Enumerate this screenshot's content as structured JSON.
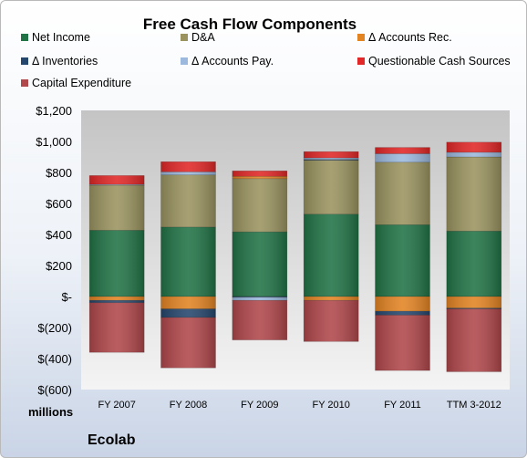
{
  "chart_data": {
    "type": "bar",
    "stacked": true,
    "title": "Free Cash Flow Components",
    "units_label": "millions",
    "company": "Ecolab",
    "ylim": [
      -600,
      1200
    ],
    "y_ticks": [
      1200,
      1000,
      800,
      600,
      400,
      200,
      0,
      -200,
      -400,
      -600
    ],
    "y_tick_labels": [
      "$1,200",
      "$1,000",
      "$800",
      "$600",
      "$400",
      "$200",
      "$-",
      "$(200)",
      "$(400)",
      "$(600)"
    ],
    "categories": [
      "FY 2007",
      "FY 2008",
      "FY 2009",
      "FY 2010",
      "FY 2011",
      "TTM 3-2012"
    ],
    "legend_placement": "top",
    "grid": false,
    "series": [
      {
        "name": "Net Income",
        "color": "#217346",
        "values": [
          427,
          448,
          417,
          531,
          463,
          422
        ]
      },
      {
        "name": "D&A",
        "color": "#9a9360",
        "values": [
          291,
          336,
          343,
          348,
          403,
          478
        ]
      },
      {
        "name": "Δ Accounts Rec.",
        "color": "#e38423",
        "values": [
          -25,
          -80,
          15,
          -25,
          -95,
          -75
        ]
      },
      {
        "name": "Δ Inventories",
        "color": "#25466d",
        "values": [
          -15,
          -55,
          -5,
          5,
          -25,
          -5
        ]
      },
      {
        "name": "Δ Accounts Pay.",
        "color": "#9cb9dd",
        "values": [
          5,
          20,
          -20,
          10,
          55,
          30
        ]
      },
      {
        "name": "Questionable Cash Sources",
        "color": "#e12727",
        "values": [
          57,
          65,
          35,
          40,
          40,
          65
        ]
      },
      {
        "name": "Capital Expenditure",
        "color": "#b0474b",
        "values": [
          -320,
          -325,
          -255,
          -265,
          -357,
          -405
        ]
      }
    ]
  }
}
